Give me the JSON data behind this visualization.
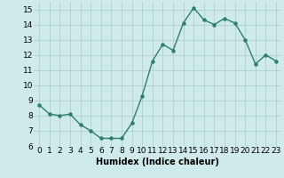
{
  "x": [
    0,
    1,
    2,
    3,
    4,
    5,
    6,
    7,
    8,
    9,
    10,
    11,
    12,
    13,
    14,
    15,
    16,
    17,
    18,
    19,
    20,
    21,
    22,
    23
  ],
  "y": [
    8.7,
    8.1,
    8.0,
    8.1,
    7.4,
    7.0,
    6.5,
    6.5,
    6.5,
    7.5,
    9.3,
    11.6,
    12.7,
    12.3,
    14.1,
    15.1,
    14.3,
    14.0,
    14.4,
    14.1,
    13.0,
    11.4,
    12.0,
    11.6
  ],
  "line_color": "#2e7d6e",
  "marker": "o",
  "markersize": 2.2,
  "linewidth": 1.0,
  "bg_color": "#ceeaea",
  "grid_color": "#b0d0ce",
  "xlabel": "Humidex (Indice chaleur)",
  "ylim": [
    6,
    15.5
  ],
  "xlim": [
    -0.5,
    23.5
  ],
  "yticks": [
    6,
    7,
    8,
    9,
    10,
    11,
    12,
    13,
    14,
    15
  ],
  "xticks": [
    0,
    1,
    2,
    3,
    4,
    5,
    6,
    7,
    8,
    9,
    10,
    11,
    12,
    13,
    14,
    15,
    16,
    17,
    18,
    19,
    20,
    21,
    22,
    23
  ],
  "label_fontsize": 7,
  "tick_fontsize": 6.5
}
